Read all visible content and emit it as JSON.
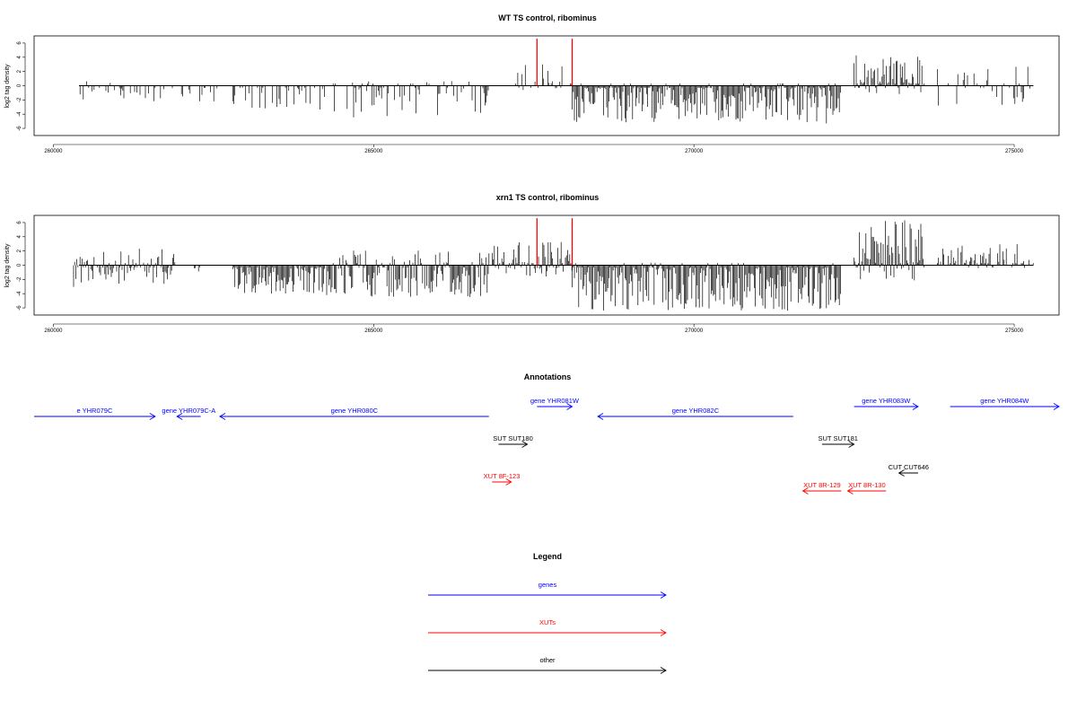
{
  "chart_data": [
    {
      "type": "bar",
      "title": "WT TS control, ribominus",
      "ylabel": "log2 tag density",
      "xlim": [
        259700,
        275700
      ],
      "ylim": [
        -7,
        7
      ],
      "x_ticks": [
        "260000",
        "265000",
        "270000",
        "275000"
      ],
      "y_ticks": [
        "-6",
        "-4",
        "-2",
        "0",
        "2",
        "4",
        "6"
      ],
      "grid": false,
      "segments": [
        {
          "x_start": 260400,
          "x_end": 260900,
          "max_neg": -2.3,
          "max_pos": 0.9,
          "density": 0.35
        },
        {
          "x_start": 260900,
          "x_end": 262000,
          "max_neg": -2.4,
          "max_pos": 0.0,
          "density": 0.3
        },
        {
          "x_start": 262000,
          "x_end": 262600,
          "max_neg": -2.6,
          "max_pos": 0.0,
          "density": 0.25
        },
        {
          "x_start": 262800,
          "x_end": 264200,
          "max_neg": -3.4,
          "max_pos": 0.0,
          "density": 0.4
        },
        {
          "x_start": 264200,
          "x_end": 266800,
          "max_neg": -4.5,
          "max_pos": 0.8,
          "density": 0.45
        },
        {
          "x_start": 267200,
          "x_end": 268100,
          "max_neg": -0.6,
          "max_pos": 3.1,
          "density": 0.5
        },
        {
          "x_start": 268100,
          "x_end": 272300,
          "max_neg": -5.3,
          "max_pos": 0.3,
          "density": 0.95
        },
        {
          "x_start": 272500,
          "x_end": 273600,
          "max_neg": -1.2,
          "max_pos": 4.3,
          "density": 0.95
        },
        {
          "x_start": 273800,
          "x_end": 275300,
          "max_neg": -2.8,
          "max_pos": 2.9,
          "density": 0.3
        }
      ],
      "highlights": [
        {
          "x": 267550,
          "value": 6.6,
          "color": "#ff0000"
        },
        {
          "x": 268100,
          "value": 6.6,
          "color": "#ff0000"
        }
      ]
    },
    {
      "type": "bar",
      "title": "xrn1 TS control, ribominus",
      "ylabel": "log2 tag density",
      "xlim": [
        259700,
        275700
      ],
      "ylim": [
        -7,
        7
      ],
      "x_ticks": [
        "260000",
        "265000",
        "270000",
        "275000"
      ],
      "y_ticks": [
        "-6",
        "-4",
        "-2",
        "0",
        "2",
        "4",
        "6"
      ],
      "grid": false,
      "segments": [
        {
          "x_start": 260300,
          "x_end": 261900,
          "max_neg": -3.1,
          "max_pos": 2.4,
          "density": 0.85
        },
        {
          "x_start": 262200,
          "x_end": 262300,
          "max_neg": -1.0,
          "max_pos": 0.0,
          "density": 0.2
        },
        {
          "x_start": 262800,
          "x_end": 264200,
          "max_neg": -4.0,
          "max_pos": 0.0,
          "density": 0.95
        },
        {
          "x_start": 264200,
          "x_end": 266800,
          "max_neg": -4.6,
          "max_pos": 2.1,
          "density": 0.95
        },
        {
          "x_start": 266800,
          "x_end": 268100,
          "max_neg": -1.6,
          "max_pos": 3.4,
          "density": 0.9
        },
        {
          "x_start": 268100,
          "x_end": 272300,
          "max_neg": -6.4,
          "max_pos": 0.4,
          "density": 1.0
        },
        {
          "x_start": 272500,
          "x_end": 273600,
          "max_neg": -2.2,
          "max_pos": 6.6,
          "density": 1.0
        },
        {
          "x_start": 273800,
          "x_end": 275300,
          "max_neg": -0.5,
          "max_pos": 3.0,
          "density": 0.6
        }
      ],
      "highlights": [
        {
          "x": 267550,
          "value": 6.6,
          "color": "#ff0000"
        },
        {
          "x": 268100,
          "value": 6.6,
          "color": "#ff0000"
        }
      ]
    }
  ],
  "annotations": {
    "title": "Annotations",
    "colors": {
      "gene": "#0000ff",
      "xut": "#ff0000",
      "other": "#000000"
    },
    "features": [
      {
        "label": "e YHR079C",
        "kind": "gene",
        "strand": "+",
        "start": 259700,
        "end": 261590,
        "row": 0
      },
      {
        "label": "gene YHR079C-A",
        "kind": "gene",
        "strand": "-",
        "start": 261930,
        "end": 262300,
        "row": 0
      },
      {
        "label": "gene YHR080C",
        "kind": "gene",
        "strand": "-",
        "start": 262600,
        "end": 266800,
        "row": 0
      },
      {
        "label": "gene YHR081W",
        "kind": "gene",
        "strand": "+",
        "start": 267550,
        "end": 268100,
        "row": 1
      },
      {
        "label": "gene YHR082C",
        "kind": "gene",
        "strand": "-",
        "start": 268500,
        "end": 271550,
        "row": 0
      },
      {
        "label": "gene YHR083W",
        "kind": "gene",
        "strand": "+",
        "start": 272500,
        "end": 273500,
        "row": 1
      },
      {
        "label": "gene YHR084W",
        "kind": "gene",
        "strand": "+",
        "start": 274000,
        "end": 275700,
        "row": 2
      },
      {
        "label": "SUT SUT180",
        "kind": "other",
        "strand": "+",
        "start": 266950,
        "end": 267400,
        "row": 3
      },
      {
        "label": "SUT SUT181",
        "kind": "other",
        "strand": "+",
        "start": 272000,
        "end": 272500,
        "row": 3
      },
      {
        "label": "CUT CUT646",
        "kind": "other",
        "strand": "-",
        "start": 273200,
        "end": 273500,
        "row": 4
      },
      {
        "label": "XUT 8F-123",
        "kind": "xut",
        "strand": "+",
        "start": 266850,
        "end": 267150,
        "row": 5
      },
      {
        "label": "XUT 8R-129",
        "kind": "xut",
        "strand": "-",
        "start": 271700,
        "end": 272300,
        "row": 6
      },
      {
        "label": "XUT 8R-130",
        "kind": "xut",
        "strand": "-",
        "start": 272400,
        "end": 273000,
        "row": 6
      }
    ]
  },
  "legend": {
    "title": "Legend",
    "items": [
      {
        "label": "genes",
        "color": "#0000ff"
      },
      {
        "label": "XUTs",
        "color": "#ff0000"
      },
      {
        "label": "other",
        "color": "#000000"
      }
    ]
  }
}
